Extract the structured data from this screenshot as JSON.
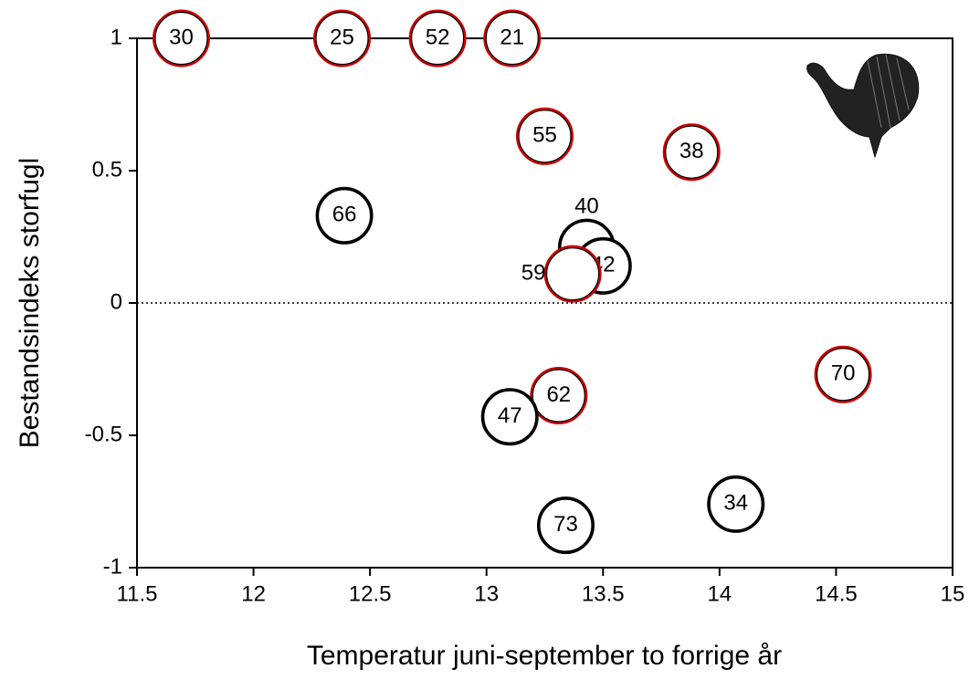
{
  "chart_data": {
    "type": "scatter",
    "xlabel": "Temperatur juni-september to forrige år",
    "ylabel": "Bestandsindeks storfugl",
    "labels": [
      "30",
      "25",
      "52",
      "21",
      "55",
      "38",
      "66",
      "40",
      "42",
      "59",
      "62",
      "47",
      "70",
      "34",
      "73"
    ],
    "x": [
      11.69,
      12.38,
      12.79,
      13.11,
      13.25,
      13.88,
      12.39,
      13.43,
      13.5,
      13.37,
      13.31,
      13.1,
      14.53,
      14.07,
      13.34
    ],
    "y": [
      1,
      1,
      1,
      1,
      0.63,
      0.57,
      0.33,
      0.21,
      0.14,
      0.11,
      -0.35,
      -0.43,
      -0.27,
      -0.76,
      -0.84
    ],
    "edge_colors": [
      "#cc0000",
      "#cc0000",
      "#cc0000",
      "#cc0000",
      "#cc0000",
      "#cc0000",
      "#000000",
      "#000000",
      "#000000",
      "#cc0000",
      "#cc0000",
      "#000000",
      "#cc0000",
      "#000000",
      "#000000"
    ],
    "label_positions": [
      "center",
      "center",
      "center",
      "center",
      "center",
      "center",
      "center",
      "above",
      "center",
      "left",
      "center",
      "center",
      "center",
      "center",
      "center"
    ],
    "xlim": [
      11.5,
      15
    ],
    "ylim": [
      -1,
      1
    ],
    "xticks": [
      11.5,
      12,
      12.5,
      13,
      13.5,
      14,
      14.5,
      15
    ],
    "yticks": [
      -1,
      -0.5,
      0,
      0.5,
      1
    ],
    "zero_line": true
  }
}
